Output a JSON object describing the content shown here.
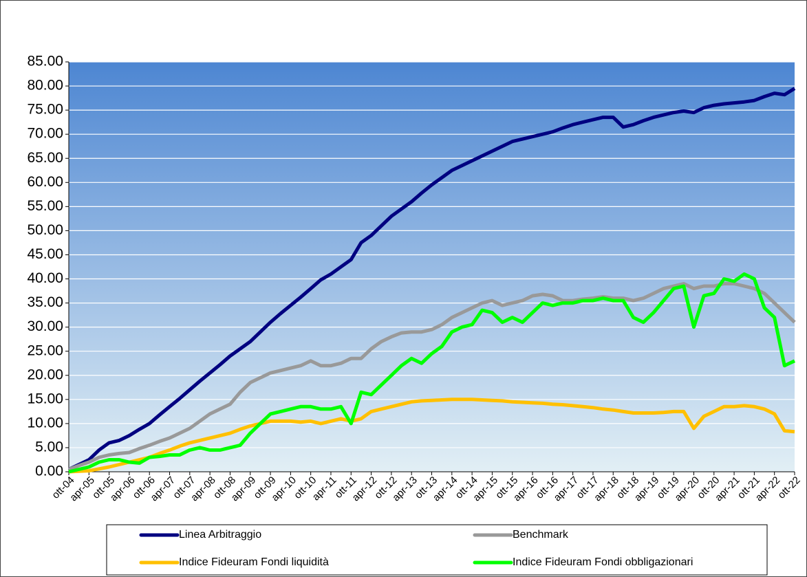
{
  "chart_data": {
    "type": "line",
    "categories": [
      "ott-04",
      null,
      "apr-05",
      null,
      "ott-05",
      null,
      "apr-06",
      null,
      "ott-06",
      null,
      "apr-07",
      null,
      "ott-07",
      null,
      "apr-08",
      null,
      "ott-08",
      null,
      "apr-09",
      null,
      "ott-09",
      null,
      "apr-10",
      null,
      "ott-10",
      null,
      "apr-11",
      null,
      "ott-11",
      null,
      "apr-12",
      null,
      "ott-12",
      null,
      "apr-13",
      null,
      "ott-13",
      null,
      "apr-14",
      null,
      "ott-14",
      null,
      "apr-15",
      null,
      "ott-15",
      null,
      "apr-16",
      null,
      "ott-16",
      null,
      "apr-17",
      null,
      "ott-17",
      null,
      "apr-18",
      null,
      "ott-18",
      null,
      "apr-19",
      null,
      "ott-19",
      null,
      "apr-20",
      null,
      "ott-20",
      null,
      "apr-21",
      null,
      "ott-21",
      null,
      "apr-22",
      null,
      "ott-22"
    ],
    "series": [
      {
        "name": "Linea Arbitraggio",
        "color": "#000080",
        "values": [
          0.5,
          1.5,
          2.5,
          4.5,
          6,
          6.5,
          7.5,
          8.8,
          10,
          11.8,
          13.5,
          15.2,
          17,
          18.8,
          20.5,
          22.2,
          24,
          25.5,
          27,
          29,
          31,
          32.8,
          34.5,
          36.2,
          38,
          39.8,
          41,
          42.5,
          44,
          47.5,
          49,
          51,
          53,
          54.5,
          56,
          57.8,
          59.5,
          61,
          62.5,
          63.5,
          64.5,
          65.5,
          66.5,
          67.5,
          68.5,
          69,
          69.5,
          70,
          70.5,
          71.3,
          72,
          72.5,
          73,
          73.5,
          73.5,
          71.5,
          72,
          72.8,
          73.5,
          74,
          74.5,
          74.8,
          74.5,
          75.5,
          76,
          76.3,
          76.5,
          76.7,
          77,
          77.8,
          78.5,
          78.2,
          79.5
        ]
      },
      {
        "name": "Benchmark",
        "color": "#999999",
        "values": [
          0.5,
          1.3,
          2,
          3,
          3.5,
          3.8,
          4,
          4.8,
          5.5,
          6.3,
          7,
          8,
          9,
          10.5,
          12,
          13,
          14,
          16.5,
          18.5,
          19.5,
          20.5,
          21,
          21.5,
          22,
          23,
          22,
          22,
          22.5,
          23.5,
          23.5,
          25.5,
          27,
          28,
          28.8,
          29,
          29,
          29.5,
          30.5,
          32,
          33,
          34,
          35,
          35.5,
          34.5,
          35,
          35.5,
          36.5,
          36.8,
          36.5,
          35.5,
          35.5,
          35.8,
          36,
          36.3,
          36,
          36,
          35.5,
          36,
          37,
          38,
          38.5,
          39,
          38,
          38.5,
          38.5,
          39,
          39,
          38.5,
          38,
          37,
          35,
          33,
          31
        ]
      },
      {
        "name": "Indice Fideuram Fondi liquidità",
        "color": "#ffc000",
        "values": [
          0,
          0.1,
          0.2,
          0.6,
          1,
          1.5,
          2,
          2.5,
          3,
          3.8,
          4.5,
          5.3,
          6,
          6.5,
          7,
          7.5,
          8,
          8.8,
          9.5,
          10,
          10.5,
          10.5,
          10.5,
          10.3,
          10.5,
          10,
          10.5,
          11,
          10.5,
          11,
          12.5,
          13,
          13.5,
          14,
          14.5,
          14.7,
          14.8,
          14.9,
          15,
          15,
          15,
          14.9,
          14.8,
          14.7,
          14.5,
          14.4,
          14.3,
          14.2,
          14,
          13.9,
          13.7,
          13.5,
          13.3,
          13,
          12.8,
          12.5,
          12.2,
          12.2,
          12.2,
          12.3,
          12.5,
          12.5,
          9,
          11.5,
          12.5,
          13.5,
          13.5,
          13.7,
          13.5,
          13,
          12,
          8.5,
          8.3
        ]
      },
      {
        "name": "Indice Fideuram Fondi obbligazionari",
        "color": "#00ff00",
        "values": [
          0,
          0.5,
          1,
          2,
          2.5,
          2.5,
          2,
          1.8,
          3,
          3.2,
          3.5,
          3.5,
          4.5,
          5,
          4.5,
          4.5,
          5,
          5.5,
          8,
          10,
          12,
          12.5,
          13,
          13.5,
          13.5,
          13,
          13,
          13.5,
          10,
          16.5,
          16,
          18,
          20,
          22,
          23.5,
          22.5,
          24.5,
          26,
          29,
          30,
          30.5,
          33.5,
          33,
          31,
          32,
          31,
          33,
          35,
          34.5,
          35,
          35,
          35.5,
          35.5,
          36,
          35.5,
          35.5,
          32,
          31,
          33,
          35.5,
          38,
          38.5,
          30,
          36.5,
          37,
          40,
          39.5,
          41,
          40,
          34,
          32,
          22,
          23
        ]
      }
    ],
    "ylim": [
      0,
      85
    ],
    "yticks": [
      {
        "value": 0,
        "label": "0.00"
      },
      {
        "value": 5,
        "label": "5.00"
      },
      {
        "value": 10,
        "label": "10.00"
      },
      {
        "value": 15,
        "label": "15.00"
      },
      {
        "value": 20,
        "label": "20.00"
      },
      {
        "value": 25,
        "label": "25.00"
      },
      {
        "value": 30,
        "label": "30.00"
      },
      {
        "value": 35,
        "label": "35.00"
      },
      {
        "value": 40,
        "label": "40.00"
      },
      {
        "value": 45,
        "label": "45.00"
      },
      {
        "value": 50,
        "label": "50.00"
      },
      {
        "value": 55,
        "label": "55.00"
      },
      {
        "value": 60,
        "label": "60.00"
      },
      {
        "value": 65,
        "label": "65.00"
      },
      {
        "value": 70,
        "label": "70.00"
      },
      {
        "value": 75,
        "label": "75.00"
      },
      {
        "value": 80,
        "label": "80.00"
      },
      {
        "value": 85,
        "label": "85.00"
      }
    ],
    "grid": true,
    "legend": "bottom"
  }
}
